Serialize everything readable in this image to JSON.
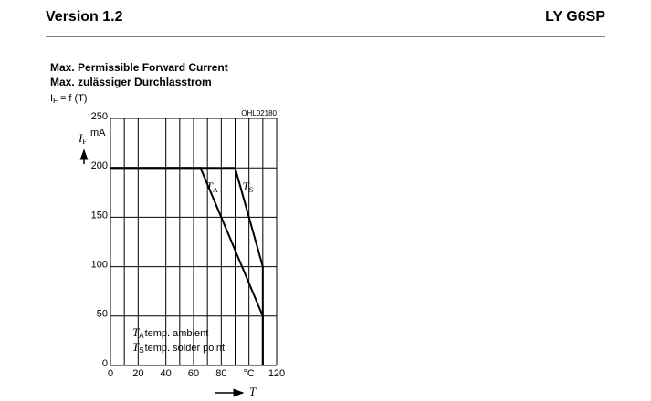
{
  "header": {
    "left": "Version 1.2",
    "right": "LY G6SP"
  },
  "chart_data": {
    "type": "line",
    "title": "Max. Permissible Forward Current",
    "subtitle": "Max. zulässiger Durchlasstrom",
    "formula": {
      "main": "I",
      "sub": "F",
      "rest": "= f (T)"
    },
    "code": "OHL02180",
    "y_label": {
      "main": "I",
      "sub": "F",
      "unit": "mA"
    },
    "x_label": "T",
    "xlim": [
      0,
      120
    ],
    "ylim": [
      0,
      250
    ],
    "xticks": [
      0,
      20,
      40,
      60,
      80,
      {
        "value": 100,
        "label": "°C"
      },
      120
    ],
    "xgrid": [
      0,
      10,
      20,
      30,
      40,
      50,
      60,
      70,
      80,
      90,
      100,
      110,
      120
    ],
    "yticks": [
      0,
      50,
      100,
      150,
      200,
      250
    ],
    "grid": true,
    "series": [
      {
        "label": {
          "main": "T",
          "sub": "A"
        },
        "color": "#000000",
        "x": [
          0,
          65,
          110,
          110
        ],
        "values": [
          200,
          200,
          50,
          0
        ]
      },
      {
        "label": {
          "main": "T",
          "sub": "S"
        },
        "color": "#000000",
        "x": [
          0,
          90,
          110,
          110
        ],
        "values": [
          200,
          200,
          100,
          0
        ]
      }
    ],
    "legend": [
      {
        "main": "T",
        "sub": "A",
        "text": "temp. ambient"
      },
      {
        "main": "T",
        "sub": "S",
        "text": "temp. solder point"
      }
    ]
  }
}
